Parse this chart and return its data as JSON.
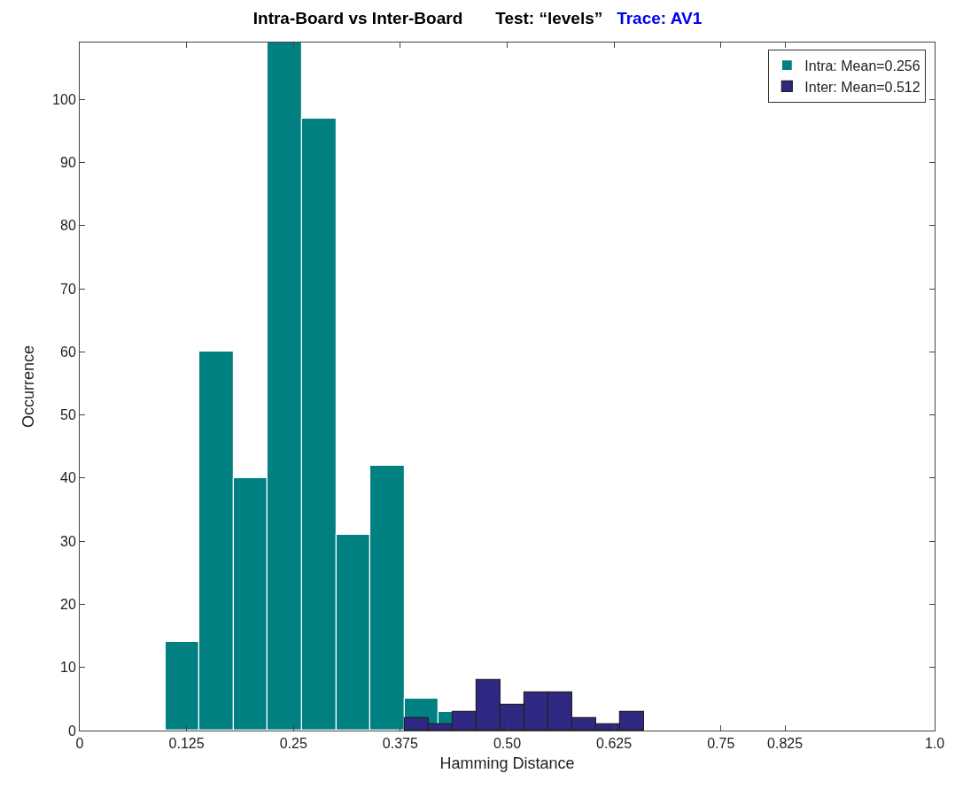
{
  "chart_data": {
    "type": "bar",
    "title": "Intra-Board vs Inter-Board       Test: “levels”",
    "subtitle": "Trace: AV1",
    "xlabel": "Hamming Distance",
    "ylabel": "Occurrence",
    "series": [
      {
        "name": "Intra: Mean=0.256",
        "color": "#008080",
        "x": [
          0.12,
          0.16,
          0.2,
          0.24,
          0.28,
          0.32,
          0.36,
          0.4,
          0.44
        ],
        "values": [
          14,
          60,
          40,
          109,
          97,
          31,
          42,
          5,
          3
        ]
      },
      {
        "name": "Inter: Mean=0.512",
        "color": "#2e2883",
        "x": [
          0.394,
          0.422,
          0.45,
          0.478,
          0.506,
          0.534,
          0.562,
          0.59,
          0.618,
          0.646
        ],
        "values": [
          2,
          1,
          3,
          8,
          4,
          6,
          6,
          2,
          1,
          3
        ]
      }
    ],
    "xlim": [
      0,
      1
    ],
    "ylim": [
      0,
      109
    ],
    "xticks": [
      0,
      0.125,
      0.25,
      0.375,
      {
        "value": 0.5,
        "label": "0.50"
      },
      0.625,
      0.75,
      0.825,
      {
        "value": 1,
        "label": "1.0"
      }
    ],
    "yticks": [
      0,
      10,
      20,
      30,
      40,
      50,
      60,
      70,
      80,
      90,
      100
    ],
    "legend": "top right"
  }
}
